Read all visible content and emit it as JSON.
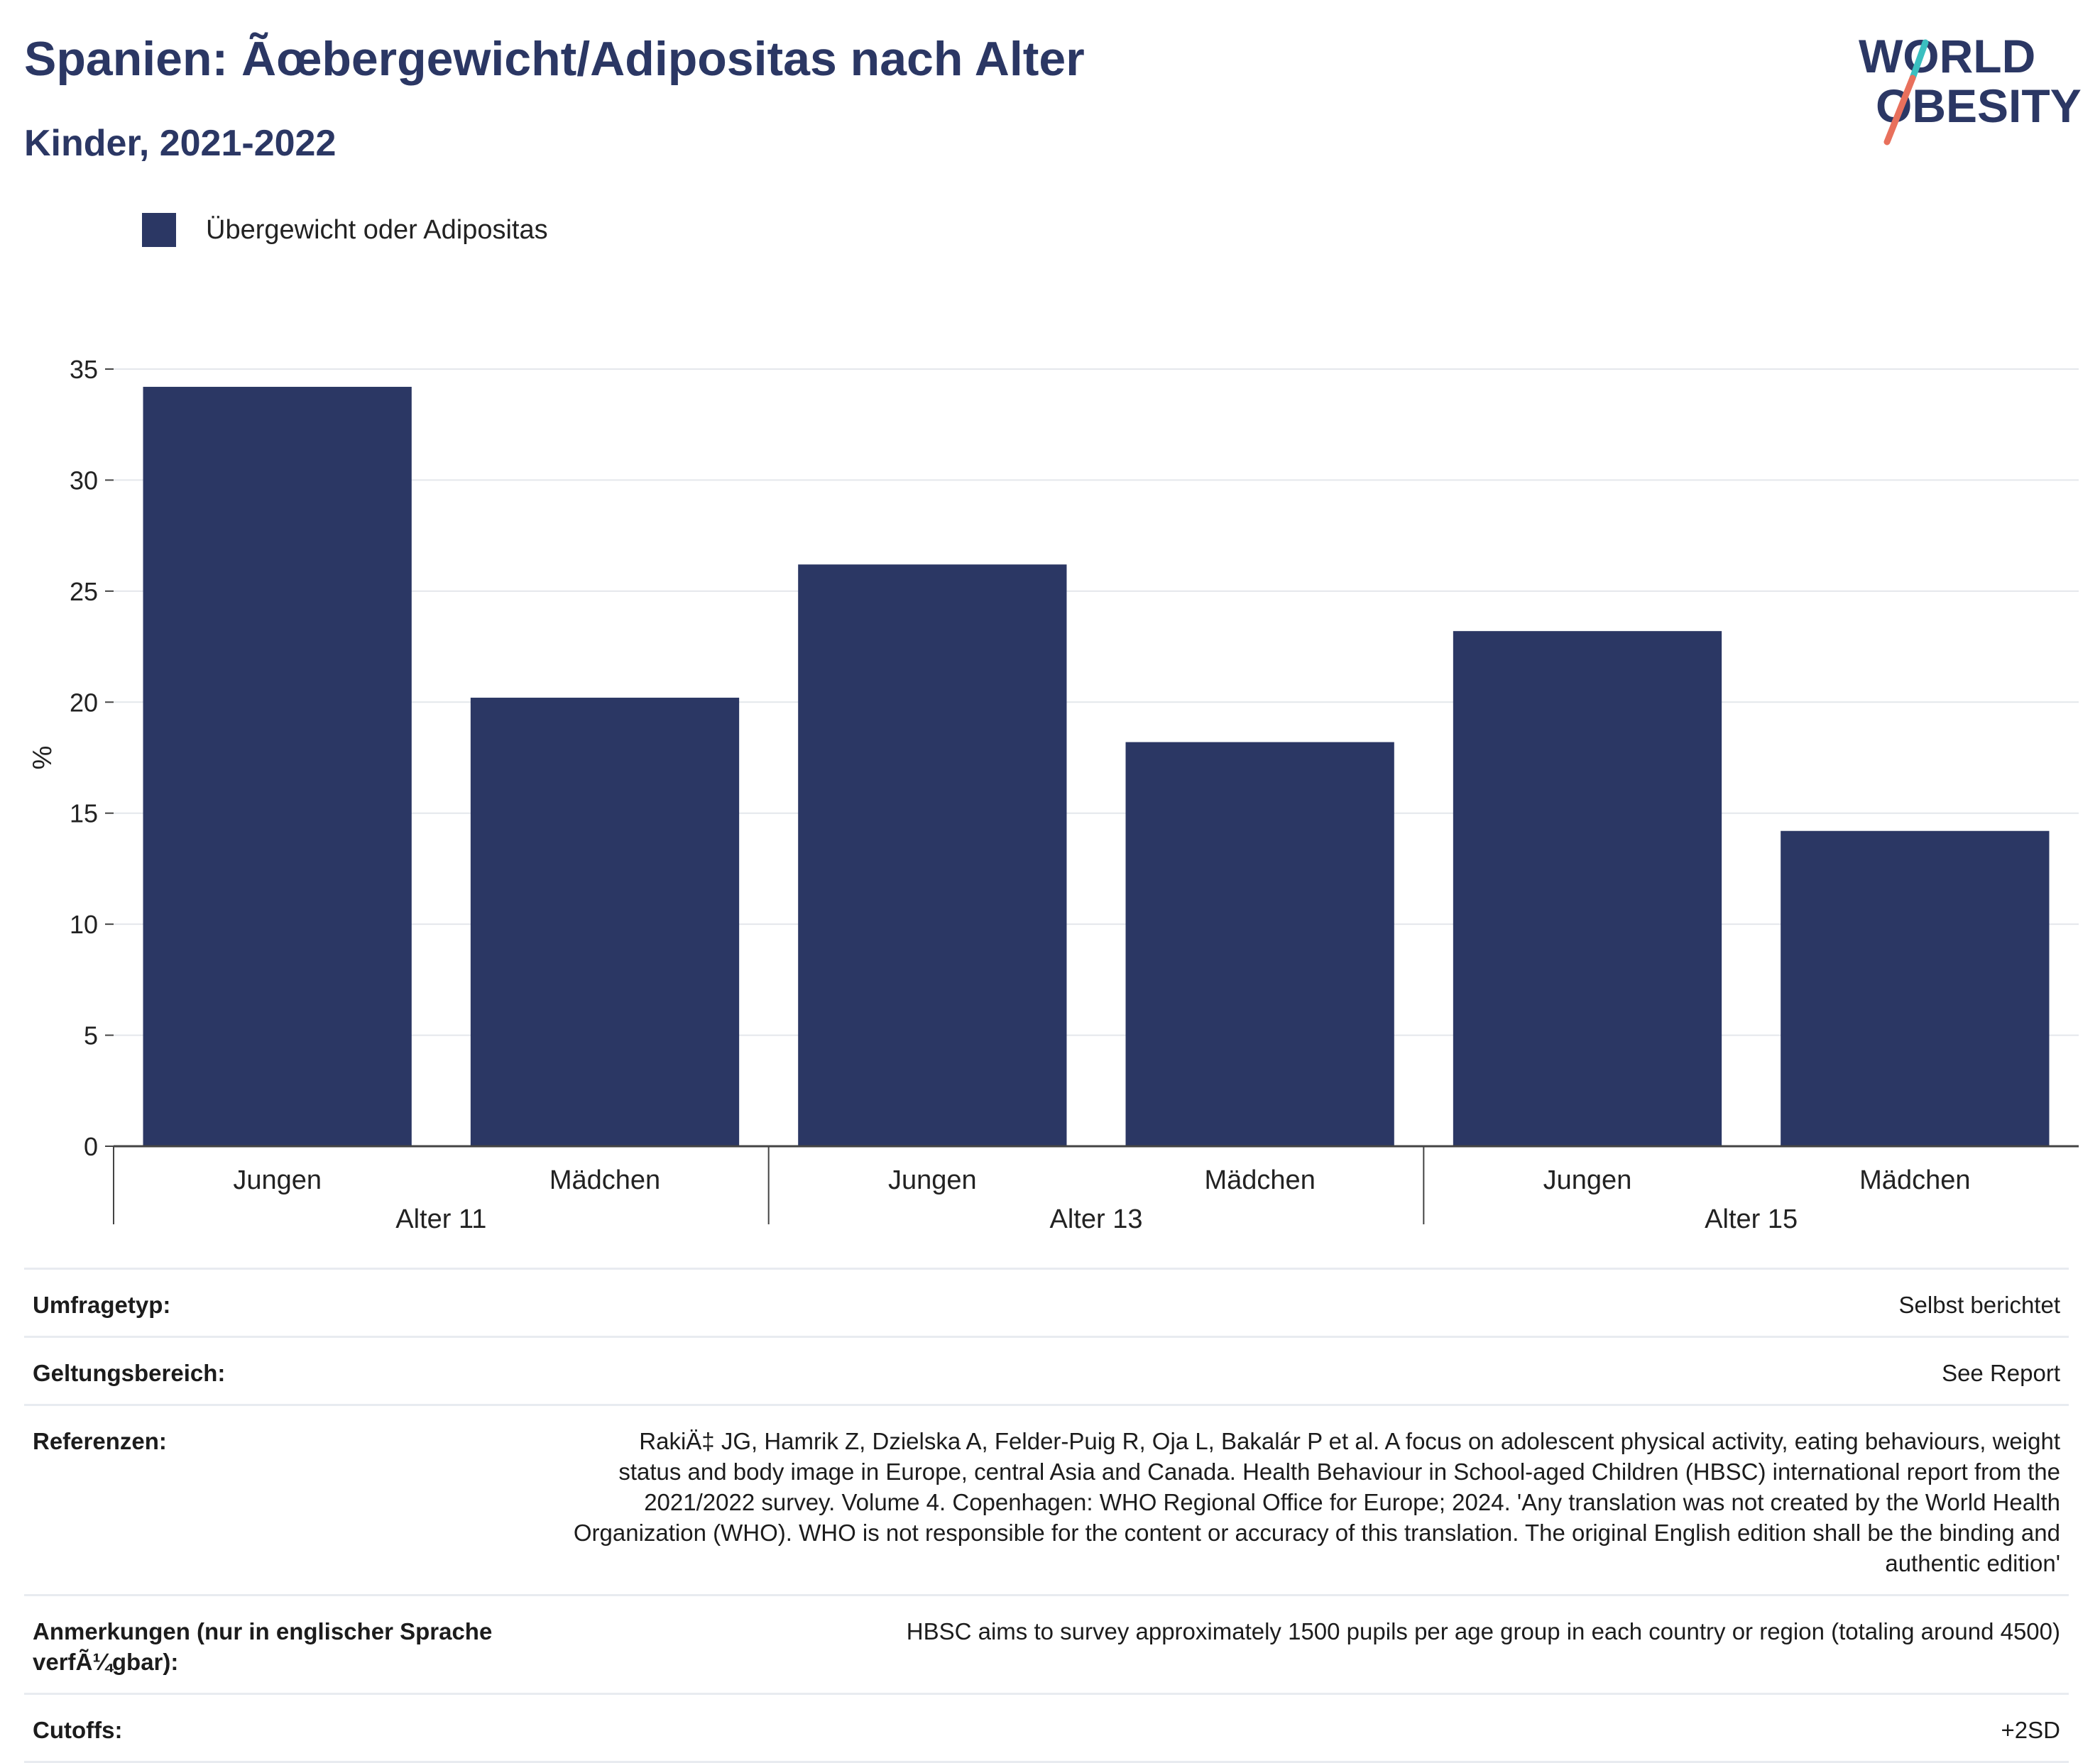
{
  "header": {
    "title": "Spanien: Ãœbergewicht/Adipositas nach Alter",
    "subtitle": "Kinder, 2021-2022"
  },
  "logo": {
    "line1": "WORLD",
    "line2": "OBESITY",
    "accent_teal": "#3bbfc0",
    "accent_red": "#e8705c",
    "color": "#2b3764"
  },
  "legend": {
    "label": "Übergewicht oder Adipositas",
    "color": "#2b3764"
  },
  "chart_data": {
    "type": "bar",
    "title": "Spanien: Ãœbergewicht/Adipositas nach Alter",
    "subtitle": "Kinder, 2021-2022",
    "ylabel": "%",
    "ylim": [
      0,
      35
    ],
    "yticks": [
      0,
      5,
      10,
      15,
      20,
      25,
      30,
      35
    ],
    "grid": true,
    "legend_position": "top-left",
    "bar_color": "#2b3764",
    "groups": [
      {
        "label": "Alter 11",
        "categories": [
          "Jungen",
          "Mädchen"
        ],
        "values": [
          34.2,
          20.2
        ]
      },
      {
        "label": "Alter 13",
        "categories": [
          "Jungen",
          "Mädchen"
        ],
        "values": [
          26.2,
          18.2
        ]
      },
      {
        "label": "Alter 15",
        "categories": [
          "Jungen",
          "Mädchen"
        ],
        "values": [
          23.2,
          14.2
        ]
      }
    ],
    "series": [
      {
        "name": "Übergewicht oder Adipositas"
      }
    ]
  },
  "meta": {
    "survey_type": {
      "label": "Umfragetyp:",
      "value": "Selbst berichtet"
    },
    "coverage": {
      "label": "Geltungsbereich:",
      "value": "See Report"
    },
    "references": {
      "label": "Referenzen:",
      "value": "RakiÄ‡ JG, Hamrik Z, Dzielska A, Felder-Puig R, Oja L, Bakalár P et al. A focus on adolescent physical activity, eating behaviours, weight status and body image in Europe, central Asia and Canada. Health Behaviour in School-aged Children (HBSC) international report from the 2021/2022 survey. Volume 4. Copenhagen: WHO Regional Office for Europe; 2024. 'Any translation was not created by the World Health Organization (WHO). WHO is not responsible for the content or accuracy of this translation. The original English edition shall be the binding and authentic edition'"
    },
    "notes": {
      "label": "Anmerkungen (nur in englischer Sprache verfÃ¼gbar):",
      "value": "HBSC aims to survey approximately 1500 pupils per age group in each country or region (totaling around 4500)"
    },
    "cutoffs": {
      "label": "Cutoffs:",
      "value": "+2SD"
    }
  }
}
